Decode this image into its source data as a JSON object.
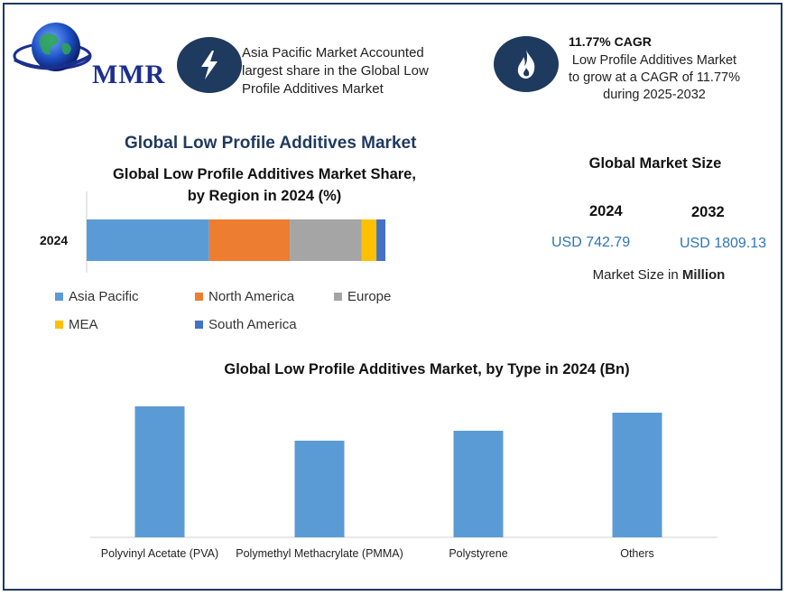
{
  "logo": {
    "text": "MMR"
  },
  "highlights": [
    {
      "icon": "lightning-icon",
      "text_lines": [
        "Asia Pacific Market Accounted",
        "largest share in the Global Low",
        "Profile Additives  Market"
      ]
    },
    {
      "icon": "flame-icon",
      "title": "11.77% CAGR",
      "text_lines": [
        "Low Profile Additives Market",
        "to grow at a CAGR of 11.77%",
        "during 2025-2032"
      ]
    }
  ],
  "main_title": "Global Low Profile Additives Market",
  "market_size": {
    "title": "Global Market Size",
    "years": [
      {
        "year": "2024",
        "value": "USD 742.79"
      },
      {
        "year": "2032",
        "value": "USD 1809.13"
      }
    ],
    "note_prefix": "Market Size in ",
    "note_unit": "Million"
  },
  "colors": {
    "frame": "#1f3a5f",
    "asia_pacific": "#5b9bd5",
    "north_america": "#ed7d31",
    "europe": "#a5a5a5",
    "mea": "#ffc000",
    "south_america": "#4472c4",
    "type_bar": "#5b9bd5",
    "usd": "#2e75b6"
  },
  "chart_data": [
    {
      "type": "bar",
      "orientation": "horizontal-stacked",
      "title": "Global Low Profile Additives Market Share,",
      "title_line2": "by Region in 2024 (%)",
      "categories": [
        "2024"
      ],
      "series": [
        {
          "name": "Asia Pacific",
          "values": [
            41
          ]
        },
        {
          "name": "North America",
          "values": [
            27
          ]
        },
        {
          "name": "Europe",
          "values": [
            24
          ]
        },
        {
          "name": "MEA",
          "values": [
            5
          ]
        },
        {
          "name": "South America",
          "values": [
            3
          ]
        }
      ],
      "legend_position": "bottom"
    },
    {
      "type": "bar",
      "title": "Global Low Profile Additives Market, by Type in 2024 (Bn)",
      "categories": [
        "Polyvinyl Acetate (PVA)",
        "Polymethyl Methacrylate (PMMA)",
        "Polystyrene",
        "Others"
      ],
      "values": [
        145,
        107,
        118,
        138
      ],
      "ylim": [
        0,
        150
      ],
      "grid": false
    }
  ]
}
